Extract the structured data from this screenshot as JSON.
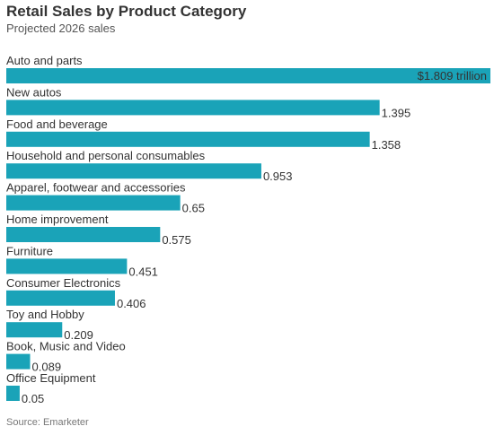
{
  "header": {
    "title": "Retail Sales by Product Category",
    "subtitle": "Projected 2026 sales"
  },
  "chart_data": {
    "type": "bar",
    "orientation": "horizontal",
    "categories": [
      "Auto and parts",
      "New autos",
      "Food and beverage",
      "Household and personal consumables",
      "Apparel, footwear and accessories",
      "Home improvement",
      "Furniture",
      "Consumer Electronics",
      "Toy and Hobby",
      "Book, Music and Video",
      "Office Equipment"
    ],
    "values": [
      1.809,
      1.395,
      1.358,
      0.953,
      0.65,
      0.575,
      0.451,
      0.406,
      0.209,
      0.089,
      0.05
    ],
    "value_labels": [
      "$1.809 trillion",
      "1.395",
      "1.358",
      "0.953",
      "0.65",
      "0.575",
      "0.451",
      "0.406",
      "0.209",
      "0.089",
      "0.05"
    ],
    "xlim": [
      0,
      1.809
    ],
    "bar_color": "#1aa3b8",
    "grid": false,
    "legend": "none"
  },
  "footer": {
    "source": "Source: Emarketer"
  }
}
